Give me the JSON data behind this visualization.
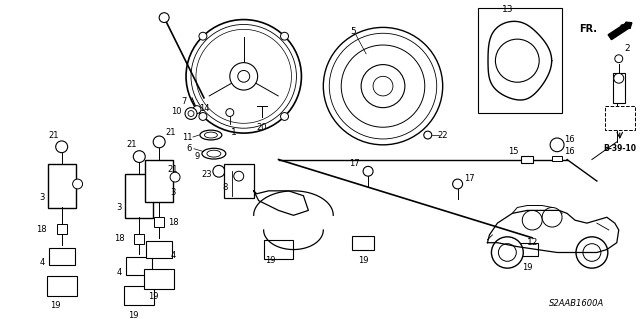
{
  "bg_color": "#ffffff",
  "fig_width": 6.4,
  "fig_height": 3.19,
  "dpi": 100,
  "diagram_code": "S2AAB1600A",
  "b_ref": "B-39-10"
}
